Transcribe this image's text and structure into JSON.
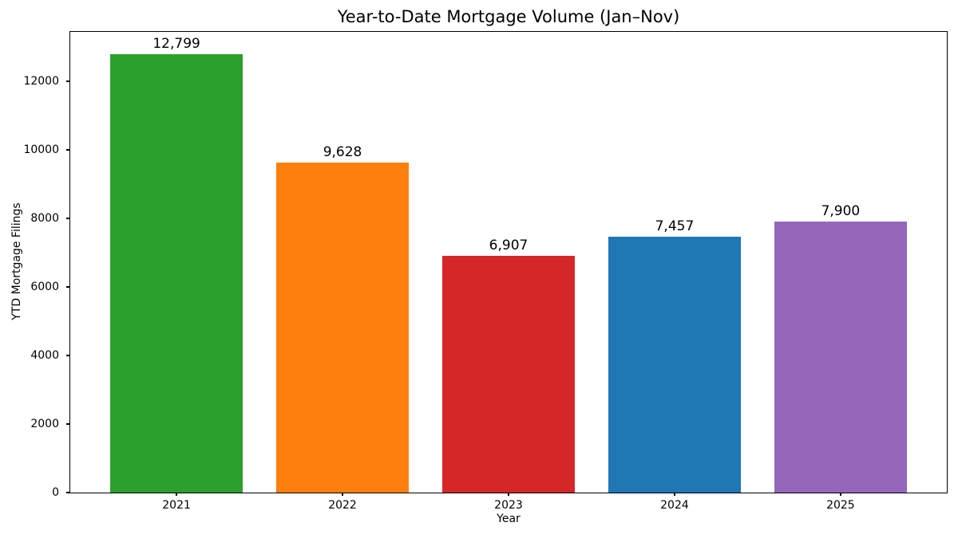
{
  "chart_data": {
    "type": "bar",
    "title": "Year-to-Date Mortgage Volume (Jan–Nov)",
    "xlabel": "Year",
    "ylabel": "YTD Mortgage Filings",
    "categories": [
      "2021",
      "2022",
      "2023",
      "2024",
      "2025"
    ],
    "values": [
      12799,
      9628,
      6907,
      7457,
      7900
    ],
    "value_labels": [
      "12,799",
      "9,628",
      "6,907",
      "7,457",
      "7,900"
    ],
    "bar_colors": [
      "#2ca02c",
      "#ff7f0e",
      "#d62728",
      "#1f77b4",
      "#9467bd"
    ],
    "yticks": [
      0,
      2000,
      4000,
      6000,
      8000,
      10000,
      12000
    ],
    "ylim": [
      0,
      13440
    ],
    "xlim": [
      -0.64,
      4.64
    ],
    "bar_width": 0.8,
    "grid": false,
    "legend": null,
    "background_color": "#ffffff",
    "axis_color": "#000000"
  }
}
